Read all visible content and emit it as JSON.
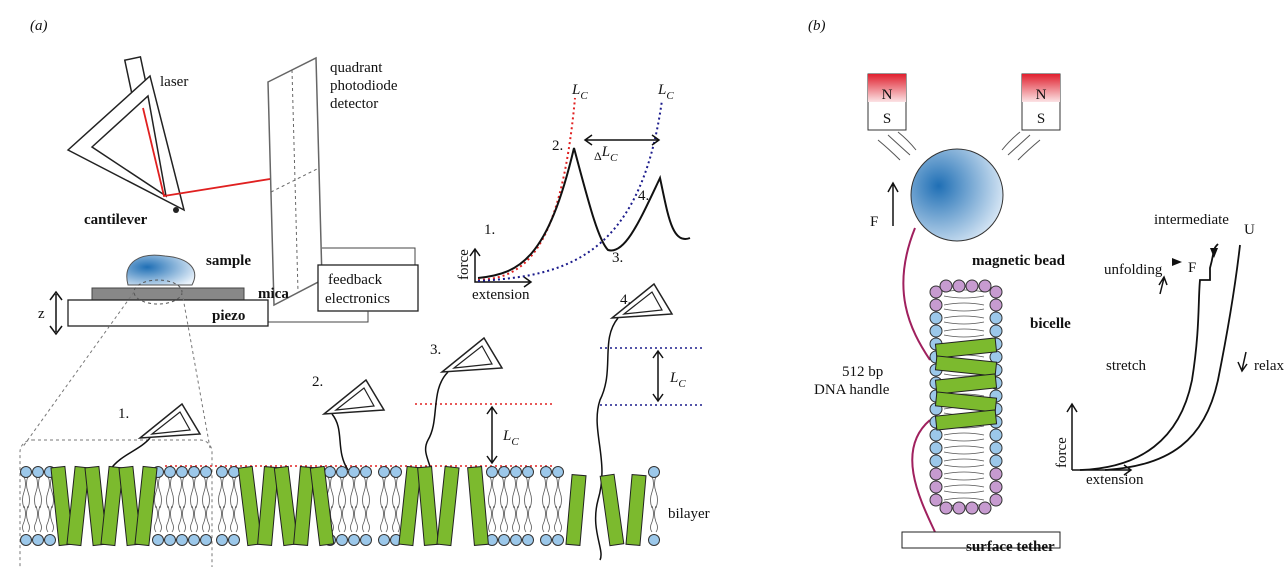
{
  "panel_a": {
    "label": "(a)",
    "laser": "laser",
    "detector": [
      "quadrant",
      "photodiode",
      "detector"
    ],
    "cantilever": "cantilever",
    "sample": "sample",
    "mica": "mica",
    "feedback": [
      "feedback",
      "electronics"
    ],
    "z": "z",
    "piezo": "piezo",
    "force_curve": {
      "contour_length": {
        "symbol": "L",
        "subscript": "C"
      },
      "delta": "Δ",
      "steps": [
        "1.",
        "2.",
        "3.",
        "4."
      ],
      "y_axis": "force",
      "x_axis": "extension"
    },
    "bilayer": "bilayer"
  },
  "panel_b": {
    "label": "(b)",
    "magnet": {
      "north": "N",
      "south": "S"
    },
    "force_arrow": "F",
    "magnetic_bead": "magnetic bead",
    "bicelle": "bicelle",
    "dna_handle": [
      "512 bp",
      "DNA handle"
    ],
    "surface_tether": "surface tether",
    "trace": {
      "intermediate": "intermediate",
      "unfolded": "U",
      "folded": "F",
      "unfolding": "unfolding",
      "stretch": "stretch",
      "relax": "relax",
      "y_axis": "force",
      "x_axis": "extension"
    }
  }
}
